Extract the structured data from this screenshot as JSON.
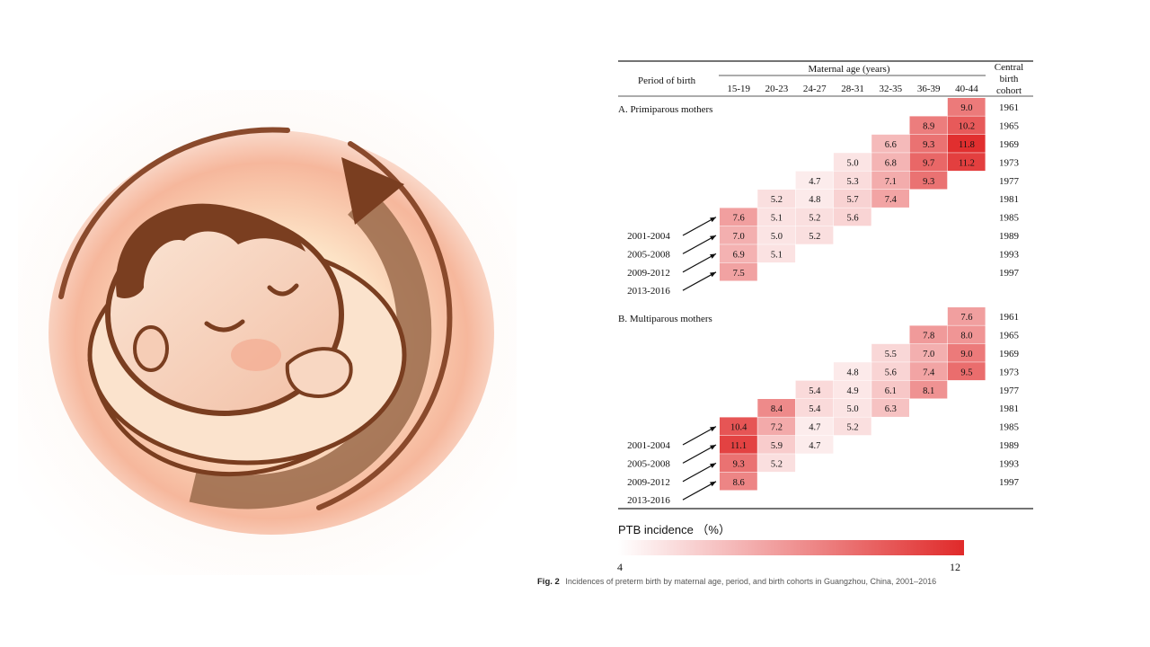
{
  "chart_data": {
    "type": "heatmap",
    "header": {
      "period_label": "Period of birth",
      "age_group_label": "Maternal age (years)",
      "cohort_label_lines": [
        "Central",
        "birth",
        "cohort"
      ]
    },
    "age_groups": [
      "15-19",
      "20-23",
      "24-27",
      "28-31",
      "32-35",
      "36-39",
      "40-44"
    ],
    "birth_cohorts": [
      "1961",
      "1965",
      "1969",
      "1973",
      "1977",
      "1981",
      "1985",
      "1989",
      "1993",
      "1997"
    ],
    "periods": [
      "2001-2004",
      "2005-2008",
      "2009-2012",
      "2013-2016"
    ],
    "panels": [
      {
        "title": "A. Primiparous mothers",
        "cells": [
          {
            "cohort": "1961",
            "age": "40-44",
            "value": "9.0"
          },
          {
            "cohort": "1965",
            "age": "36-39",
            "value": "8.9"
          },
          {
            "cohort": "1965",
            "age": "40-44",
            "value": "10.2"
          },
          {
            "cohort": "1969",
            "age": "32-35",
            "value": "6.6"
          },
          {
            "cohort": "1969",
            "age": "36-39",
            "value": "9.3"
          },
          {
            "cohort": "1969",
            "age": "40-44",
            "value": "11.8"
          },
          {
            "cohort": "1973",
            "age": "28-31",
            "value": "5.0"
          },
          {
            "cohort": "1973",
            "age": "32-35",
            "value": "6.8"
          },
          {
            "cohort": "1973",
            "age": "36-39",
            "value": "9.7"
          },
          {
            "cohort": "1973",
            "age": "40-44",
            "value": "11.2"
          },
          {
            "cohort": "1977",
            "age": "24-27",
            "value": "4.7"
          },
          {
            "cohort": "1977",
            "age": "28-31",
            "value": "5.3"
          },
          {
            "cohort": "1977",
            "age": "32-35",
            "value": "7.1"
          },
          {
            "cohort": "1977",
            "age": "36-39",
            "value": "9.3"
          },
          {
            "cohort": "1981",
            "age": "20-23",
            "value": "5.2"
          },
          {
            "cohort": "1981",
            "age": "24-27",
            "value": "4.8"
          },
          {
            "cohort": "1981",
            "age": "28-31",
            "value": "5.7"
          },
          {
            "cohort": "1981",
            "age": "32-35",
            "value": "7.4"
          },
          {
            "cohort": "1985",
            "age": "15-19",
            "value": "7.6"
          },
          {
            "cohort": "1985",
            "age": "20-23",
            "value": "5.1"
          },
          {
            "cohort": "1985",
            "age": "24-27",
            "value": "5.2"
          },
          {
            "cohort": "1985",
            "age": "28-31",
            "value": "5.6"
          },
          {
            "cohort": "1989",
            "age": "15-19",
            "value": "7.0"
          },
          {
            "cohort": "1989",
            "age": "20-23",
            "value": "5.0"
          },
          {
            "cohort": "1989",
            "age": "24-27",
            "value": "5.2"
          },
          {
            "cohort": "1993",
            "age": "15-19",
            "value": "6.9"
          },
          {
            "cohort": "1993",
            "age": "20-23",
            "value": "5.1"
          },
          {
            "cohort": "1997",
            "age": "15-19",
            "value": "7.5"
          }
        ]
      },
      {
        "title": "B. Multiparous mothers",
        "cells": [
          {
            "cohort": "1961",
            "age": "40-44",
            "value": "7.6"
          },
          {
            "cohort": "1965",
            "age": "36-39",
            "value": "7.8"
          },
          {
            "cohort": "1965",
            "age": "40-44",
            "value": "8.0"
          },
          {
            "cohort": "1969",
            "age": "32-35",
            "value": "5.5"
          },
          {
            "cohort": "1969",
            "age": "36-39",
            "value": "7.0"
          },
          {
            "cohort": "1969",
            "age": "40-44",
            "value": "9.0"
          },
          {
            "cohort": "1973",
            "age": "28-31",
            "value": "4.8"
          },
          {
            "cohort": "1973",
            "age": "32-35",
            "value": "5.6"
          },
          {
            "cohort": "1973",
            "age": "36-39",
            "value": "7.4"
          },
          {
            "cohort": "1973",
            "age": "40-44",
            "value": "9.5"
          },
          {
            "cohort": "1977",
            "age": "24-27",
            "value": "5.4"
          },
          {
            "cohort": "1977",
            "age": "28-31",
            "value": "4.9"
          },
          {
            "cohort": "1977",
            "age": "32-35",
            "value": "6.1"
          },
          {
            "cohort": "1977",
            "age": "36-39",
            "value": "8.1"
          },
          {
            "cohort": "1981",
            "age": "20-23",
            "value": "8.4"
          },
          {
            "cohort": "1981",
            "age": "24-27",
            "value": "5.4"
          },
          {
            "cohort": "1981",
            "age": "28-31",
            "value": "5.0"
          },
          {
            "cohort": "1981",
            "age": "32-35",
            "value": "6.3"
          },
          {
            "cohort": "1985",
            "age": "15-19",
            "value": "10.4"
          },
          {
            "cohort": "1985",
            "age": "20-23",
            "value": "7.2"
          },
          {
            "cohort": "1985",
            "age": "24-27",
            "value": "4.7"
          },
          {
            "cohort": "1985",
            "age": "28-31",
            "value": "5.2"
          },
          {
            "cohort": "1989",
            "age": "15-19",
            "value": "11.1"
          },
          {
            "cohort": "1989",
            "age": "20-23",
            "value": "5.9"
          },
          {
            "cohort": "1989",
            "age": "24-27",
            "value": "4.7"
          },
          {
            "cohort": "1993",
            "age": "15-19",
            "value": "9.3"
          },
          {
            "cohort": "1993",
            "age": "20-23",
            "value": "5.2"
          },
          {
            "cohort": "1997",
            "age": "15-19",
            "value": "8.6"
          }
        ]
      }
    ],
    "color_scale": {
      "title": "PTB incidence （%）",
      "min": 4,
      "max": 12,
      "min_label": "4",
      "max_label": "12",
      "low_color": "#ffffff",
      "high_color": "#e02a2a"
    },
    "caption": {
      "label": "Fig. 2",
      "text": "Incidences of preterm birth by maternal age, period, and birth cohorts in Guangzhou, China, 2001–2016"
    }
  },
  "illustration": {
    "icon": "sleeping-baby-icon",
    "colors": {
      "outline": "#7a3e20",
      "skin": "#f6d8c4",
      "glow": "#f4a58a"
    }
  }
}
